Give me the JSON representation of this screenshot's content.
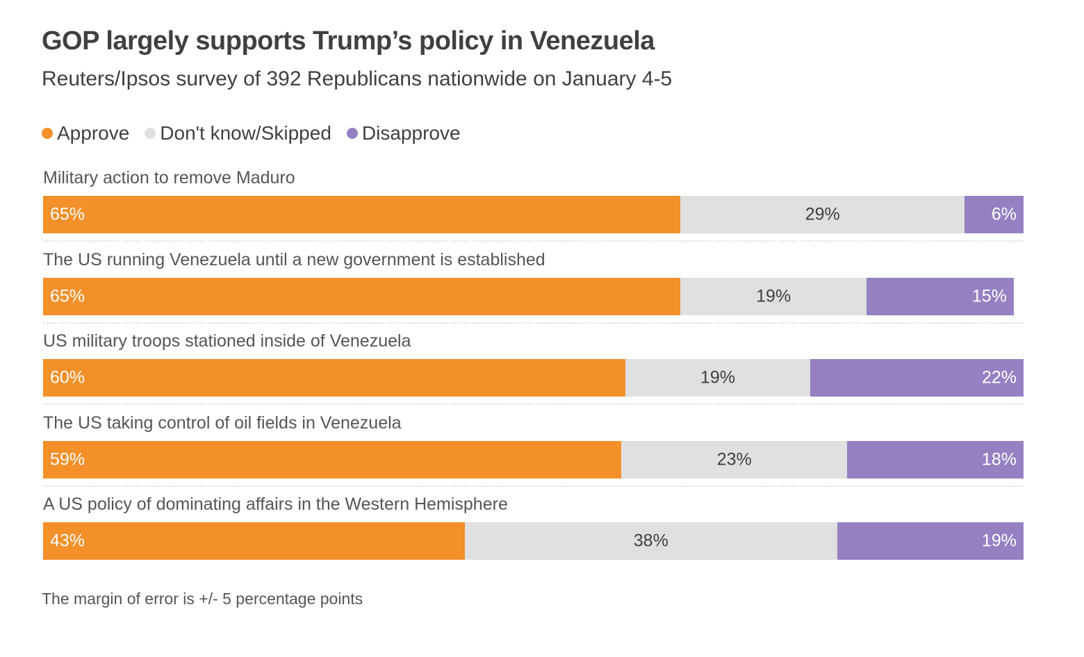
{
  "chart_data": {
    "type": "bar",
    "orientation": "horizontal",
    "stacked": true,
    "title": "GOP largely supports Trump’s policy in Venezuela",
    "subtitle": "Reuters/Ipsos survey of 392 Republicans nationwide on January 4-5",
    "xlabel": "",
    "ylabel": "",
    "xlim": [
      0,
      100
    ],
    "grid": false,
    "legend_position": "top-left",
    "legend": [
      {
        "name": "Approve",
        "color": "#f39029"
      },
      {
        "name": "Don't know/Skipped",
        "color": "#e0e0e0"
      },
      {
        "name": "Disapprove",
        "color": "#9581c2"
      }
    ],
    "categories": [
      "Military action to remove Maduro",
      "The US running Venezuela until a new government is established",
      "US military troops stationed inside of Venezuela",
      "The US taking control of oil fields in Venezuela",
      "A US policy of dominating affairs in the Western Hemisphere"
    ],
    "series": [
      {
        "name": "Approve",
        "values": [
          65,
          65,
          60,
          59,
          43
        ]
      },
      {
        "name": "Don't know/Skipped",
        "values": [
          29,
          19,
          19,
          23,
          38
        ]
      },
      {
        "name": "Disapprove",
        "values": [
          6,
          15,
          22,
          18,
          19
        ]
      }
    ],
    "value_suffix": "%",
    "note": "The margin of error is +/- 5 percentage points"
  }
}
